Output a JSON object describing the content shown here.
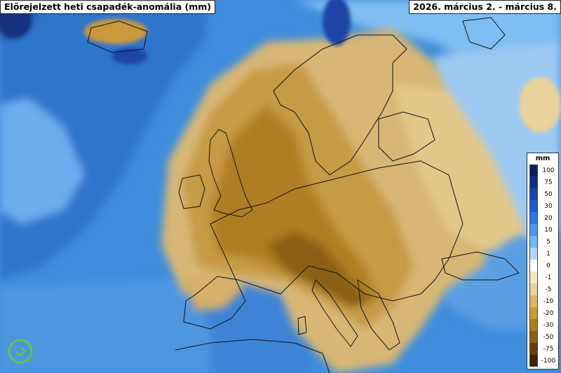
{
  "title": "Előrejelzett heti csapadék-anomália (mm)",
  "period": "2026. március 2. - március 8.",
  "legend": {
    "unit": "mm",
    "labels": [
      "100",
      "75",
      "50",
      "30",
      "20",
      "10",
      "5",
      "1",
      "0",
      "-1",
      "-5",
      "-10",
      "-20",
      "-30",
      "-50",
      "-75",
      "-100"
    ],
    "colors": [
      "#0c1f5c",
      "#12307e",
      "#1a45a6",
      "#1f5cc8",
      "#2c77dc",
      "#4a96ea",
      "#78b6f2",
      "#b4d6f6",
      "#ffffff",
      "#f5e7c8",
      "#e9d29c",
      "#dcb66a",
      "#c99a3c",
      "#b07d22",
      "#8c5f16",
      "#65400c",
      "#3f2406"
    ]
  },
  "logo": "swirl-logo-icon"
}
